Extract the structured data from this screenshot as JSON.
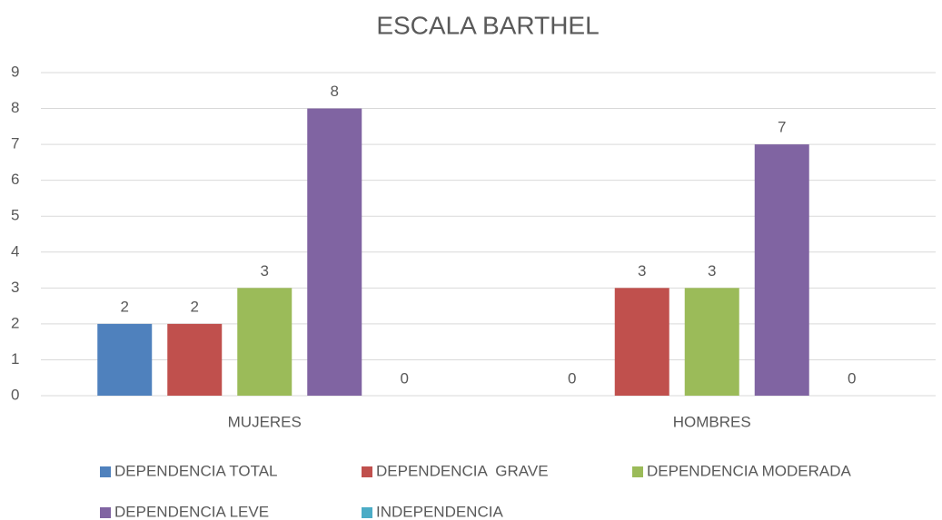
{
  "chart_data": {
    "type": "bar",
    "title": "ESCALA BARTHEL",
    "categories": [
      "MUJERES",
      "HOMBRES"
    ],
    "series": [
      {
        "name": "DEPENDENCIA TOTAL",
        "color": "#4f81bd",
        "values": [
          2,
          0
        ]
      },
      {
        "name": "DEPENDENCIA  GRAVE",
        "color": "#c0504d",
        "values": [
          2,
          3
        ]
      },
      {
        "name": "DEPENDENCIA MODERADA",
        "color": "#9bbb59",
        "values": [
          3,
          3
        ]
      },
      {
        "name": "DEPENDENCIA LEVE",
        "color": "#8064a2",
        "values": [
          8,
          7
        ]
      },
      {
        "name": "INDEPENDENCIA",
        "color": "#4bacc6",
        "values": [
          0,
          0
        ]
      }
    ],
    "ylim": [
      0,
      9
    ],
    "yticks": [
      0,
      1,
      2,
      3,
      4,
      5,
      6,
      7,
      8,
      9
    ],
    "grid": true,
    "legend": "bottom"
  }
}
